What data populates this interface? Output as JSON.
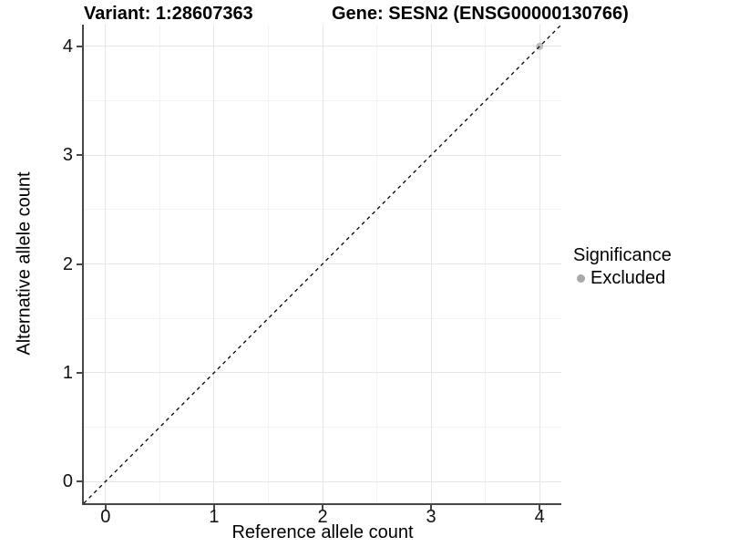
{
  "titles": {
    "variant": "Variant: 1:28607363",
    "gene": "Gene: SESN2 (ENSG00000130766)"
  },
  "chart_data": {
    "type": "scatter",
    "title_left": "Variant: 1:28607363",
    "title_right": "Gene: SESN2 (ENSG00000130766)",
    "xlabel": "Reference allele count",
    "ylabel": "Alternative allele count",
    "xlim": [
      -0.2,
      4.2
    ],
    "ylim": [
      -0.2,
      4.2
    ],
    "x_ticks": [
      0,
      1,
      2,
      3,
      4
    ],
    "y_ticks": [
      0,
      1,
      2,
      3,
      4
    ],
    "x_minor_ticks": [
      0.5,
      1.5,
      2.5,
      3.5
    ],
    "y_minor_ticks": [
      0.5,
      1.5,
      2.5,
      3.5
    ],
    "grid": true,
    "series": [
      {
        "name": "Excluded",
        "color": "#bebebe",
        "points": [
          {
            "x": 4,
            "y": 4
          }
        ]
      }
    ],
    "reference_line": {
      "kind": "identity",
      "equation": "y = x",
      "style": "dashed",
      "color": "#000000"
    },
    "legend": {
      "title": "Significance",
      "position": "right",
      "entries": [
        {
          "label": "Excluded",
          "color": "#a8a8a8"
        }
      ]
    }
  },
  "colors": {
    "grid_major": "#e6e6e6",
    "grid_minor": "#f3f3f3",
    "axis_line": "#474747",
    "tick_text": "#111111",
    "background": "#ffffff"
  }
}
